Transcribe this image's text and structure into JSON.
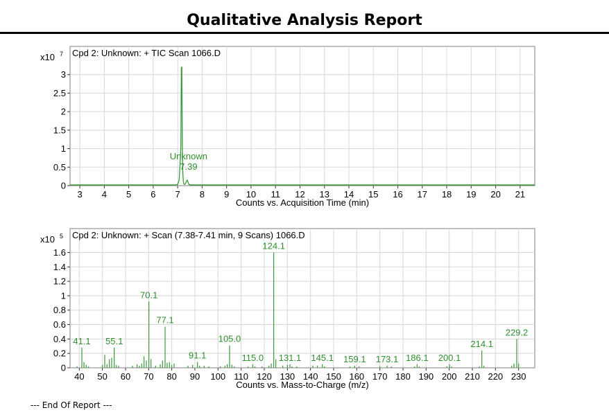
{
  "report": {
    "title": "Qualitative Analysis Report",
    "footer": "--- End Of Report ---"
  },
  "colors": {
    "trace": "#3a9a3a",
    "label": "#2f8f2f",
    "grid": "#d8d8d8",
    "frame": "#7f7f7f"
  },
  "chart_data": [
    {
      "type": "line",
      "title": "Cpd 2: Unknown: + TIC Scan 1066.D",
      "xlabel": "Counts vs. Acquisition Time (min)",
      "ylabel": "",
      "y_multiplier": {
        "base": "x10",
        "exp": "7"
      },
      "xlim": [
        2.6,
        21.6
      ],
      "ylim": [
        0,
        3.35
      ],
      "x_ticks": [
        3,
        4,
        5,
        6,
        7,
        8,
        9,
        10,
        11,
        12,
        13,
        14,
        15,
        16,
        17,
        18,
        19,
        20,
        21
      ],
      "y_ticks": [
        0,
        0.5,
        1,
        1.5,
        2,
        2.5,
        3
      ],
      "y_tick_labels": [
        "0",
        "0.5",
        "1",
        "1.5",
        "2",
        "2.5",
        "3"
      ],
      "grid": true,
      "series": [
        {
          "x": [
            2.6,
            6.9,
            7.0,
            7.06,
            7.1,
            7.13,
            7.15,
            7.17,
            7.19,
            7.21,
            7.23,
            7.25,
            7.28,
            7.32,
            7.36,
            7.39,
            7.42,
            7.46,
            7.55,
            21.6
          ],
          "y": [
            0.02,
            0.02,
            0.03,
            0.15,
            0.6,
            1.05,
            3.2,
            3.2,
            1.1,
            0.35,
            0.12,
            0.05,
            0.03,
            0.06,
            0.12,
            0.15,
            0.1,
            0.03,
            0.02,
            0.02
          ]
        }
      ],
      "annotations": [
        {
          "x": 7.39,
          "y": 0.15,
          "lines": [
            "Unknown",
            "7.39"
          ]
        }
      ]
    },
    {
      "type": "bar",
      "title": "Cpd 2: Unknown: + Scan (7.38-7.41 min, 9 Scans) 1066.D",
      "xlabel": "Counts vs. Mass-to-Charge (m/z)",
      "ylabel": "",
      "y_multiplier": {
        "base": "x10",
        "exp": "5"
      },
      "xlim": [
        36,
        237
      ],
      "ylim": [
        0,
        1.72
      ],
      "x_ticks": [
        40,
        50,
        60,
        70,
        80,
        90,
        100,
        110,
        120,
        130,
        140,
        150,
        160,
        170,
        180,
        190,
        200,
        210,
        220,
        230
      ],
      "y_ticks": [
        0,
        0.2,
        0.4,
        0.6,
        0.8,
        1,
        1.2,
        1.4,
        1.6
      ],
      "y_tick_labels": [
        "0",
        "0.2",
        "0.4",
        "0.6",
        "0.8",
        "1",
        "1.2",
        "1.4",
        "1.6"
      ],
      "grid": true,
      "peaks": [
        [
          39,
          0.02
        ],
        [
          41.1,
          0.28
        ],
        [
          42,
          0.08
        ],
        [
          43,
          0.04
        ],
        [
          44,
          0.02
        ],
        [
          50,
          0.04
        ],
        [
          51,
          0.18
        ],
        [
          52,
          0.05
        ],
        [
          53,
          0.12
        ],
        [
          54,
          0.14
        ],
        [
          55.1,
          0.28
        ],
        [
          56,
          0.04
        ],
        [
          57,
          0.03
        ],
        [
          63,
          0.03
        ],
        [
          65,
          0.05
        ],
        [
          66,
          0.03
        ],
        [
          67,
          0.06
        ],
        [
          68,
          0.16
        ],
        [
          69,
          0.1
        ],
        [
          70.1,
          0.92
        ],
        [
          71,
          0.12
        ],
        [
          73,
          0.03
        ],
        [
          75,
          0.05
        ],
        [
          76,
          0.1
        ],
        [
          77.1,
          0.57
        ],
        [
          78,
          0.07
        ],
        [
          79,
          0.08
        ],
        [
          80,
          0.04
        ],
        [
          81,
          0.06
        ],
        [
          87,
          0.03
        ],
        [
          89,
          0.04
        ],
        [
          91.1,
          0.08
        ],
        [
          92,
          0.03
        ],
        [
          94,
          0.03
        ],
        [
          96,
          0.02
        ],
        [
          101,
          0.02
        ],
        [
          103,
          0.03
        ],
        [
          104,
          0.05
        ],
        [
          105.0,
          0.31
        ],
        [
          106,
          0.04
        ],
        [
          107,
          0.02
        ],
        [
          113,
          0.02
        ],
        [
          115.0,
          0.05
        ],
        [
          116,
          0.02
        ],
        [
          119,
          0.02
        ],
        [
          122,
          0.03
        ],
        [
          123,
          0.06
        ],
        [
          124.1,
          1.6
        ],
        [
          125,
          0.12
        ],
        [
          128,
          0.03
        ],
        [
          130,
          0.04
        ],
        [
          131.1,
          0.05
        ],
        [
          132,
          0.02
        ],
        [
          134,
          0.02
        ],
        [
          141,
          0.03
        ],
        [
          143,
          0.03
        ],
        [
          145.1,
          0.05
        ],
        [
          146,
          0.02
        ],
        [
          157,
          0.02
        ],
        [
          159.1,
          0.03
        ],
        [
          161,
          0.02
        ],
        [
          170,
          0.02
        ],
        [
          173.1,
          0.03
        ],
        [
          175,
          0.02
        ],
        [
          185,
          0.02
        ],
        [
          186.1,
          0.05
        ],
        [
          187,
          0.02
        ],
        [
          199,
          0.02
        ],
        [
          200.1,
          0.05
        ],
        [
          201,
          0.02
        ],
        [
          213,
          0.02
        ],
        [
          214.1,
          0.24
        ],
        [
          215,
          0.03
        ],
        [
          227,
          0.03
        ],
        [
          228,
          0.06
        ],
        [
          229.2,
          0.4
        ],
        [
          230,
          0.06
        ]
      ],
      "peak_labels": [
        {
          "x": 41.1,
          "y": 0.28,
          "text": "41.1"
        },
        {
          "x": 55.1,
          "y": 0.28,
          "text": "55.1"
        },
        {
          "x": 70.1,
          "y": 0.92,
          "text": "70.1"
        },
        {
          "x": 77.1,
          "y": 0.57,
          "text": "77.1"
        },
        {
          "x": 91.1,
          "y": 0.08,
          "text": "91.1"
        },
        {
          "x": 105.0,
          "y": 0.31,
          "text": "105.0"
        },
        {
          "x": 115.0,
          "y": 0.05,
          "text": "115.0"
        },
        {
          "x": 124.1,
          "y": 1.6,
          "text": "124.1"
        },
        {
          "x": 131.1,
          "y": 0.05,
          "text": "131.1"
        },
        {
          "x": 145.1,
          "y": 0.05,
          "text": "145.1"
        },
        {
          "x": 159.1,
          "y": 0.03,
          "text": "159.1"
        },
        {
          "x": 173.1,
          "y": 0.03,
          "text": "173.1"
        },
        {
          "x": 186.1,
          "y": 0.05,
          "text": "186.1"
        },
        {
          "x": 200.1,
          "y": 0.05,
          "text": "200.1"
        },
        {
          "x": 214.1,
          "y": 0.24,
          "text": "214.1"
        },
        {
          "x": 229.2,
          "y": 0.4,
          "text": "229.2"
        }
      ]
    }
  ]
}
